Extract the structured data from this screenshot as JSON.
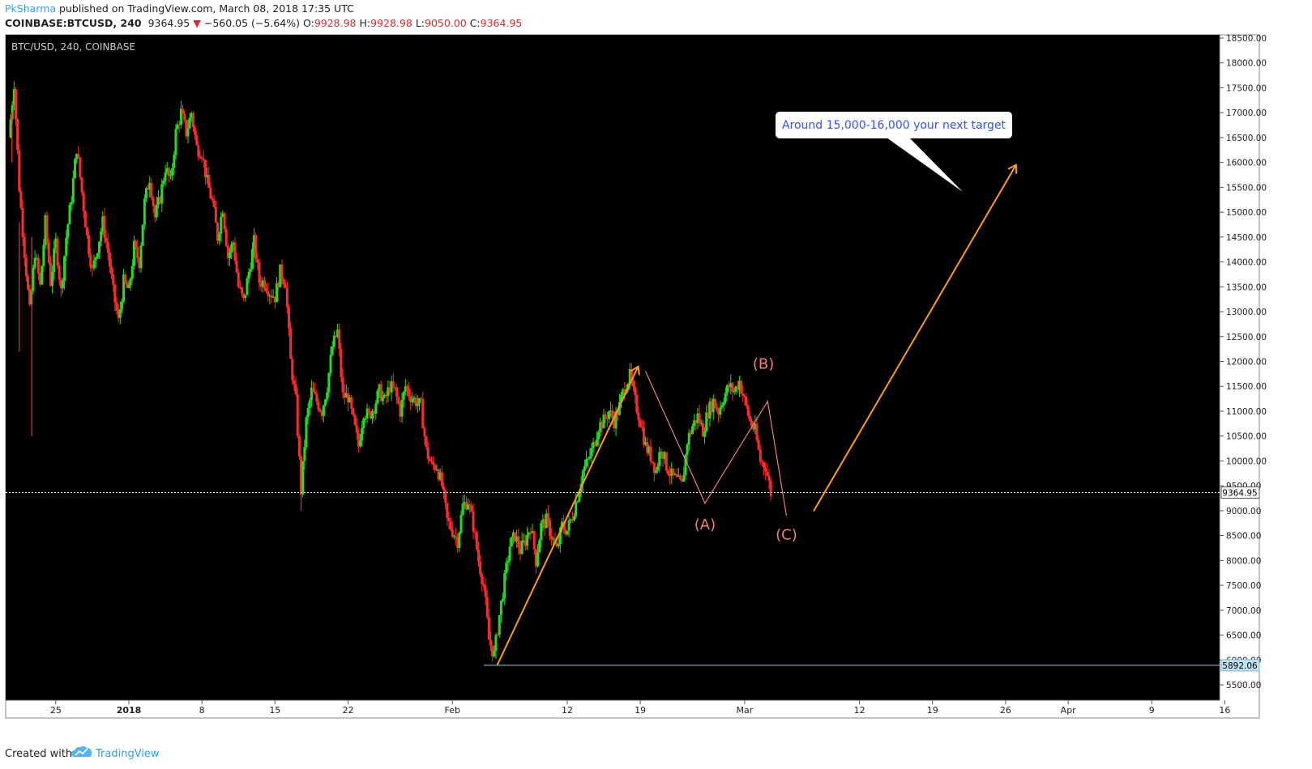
{
  "header": {
    "author": "PkSharma",
    "published": " published on TradingView.com, March 08, 2018 17:35 UTC",
    "symbol": "COINBASE:BTCUSD, 240",
    "price": "9364.95",
    "change": "−560.05 (−5.64%)",
    "o_label": "O:",
    "o_value": "9928.98",
    "h_label": "H:",
    "h_value": "9928.98",
    "l_label": "L:",
    "l_value": "9050.00",
    "c_label": "C:",
    "c_value": "9364.95"
  },
  "footer": {
    "created": "Created with",
    "brand": "TradingView"
  },
  "chart_data": {
    "type": "candlestick",
    "title": "BTC/USD, 240, COINBASE",
    "background": "#000000",
    "up_color": "#22dd22",
    "down_color": "#ff2a2a",
    "annotation_color": "#ff9a1a",
    "wave_color": "#f08070",
    "ylim": [
      5300,
      18600
    ],
    "y_ticks": [
      "18500.00",
      "18000.00",
      "17500.00",
      "17000.00",
      "16500.00",
      "16000.00",
      "15500.00",
      "15000.00",
      "14500.00",
      "14000.00",
      "13500.00",
      "13000.00",
      "12500.00",
      "12000.00",
      "11500.00",
      "11000.00",
      "10500.00",
      "10000.00",
      "9500.00",
      "9000.00",
      "8500.00",
      "8000.00",
      "7500.00",
      "7000.00",
      "6500.00",
      "6000.00",
      "5500.00"
    ],
    "x_ticks": [
      {
        "label": "25",
        "day": -7
      },
      {
        "label": "2018",
        "day": 0
      },
      {
        "label": "8",
        "day": 7
      },
      {
        "label": "15",
        "day": 14
      },
      {
        "label": "22",
        "day": 21
      },
      {
        "label": "Feb",
        "day": 31
      },
      {
        "label": "12",
        "day": 42
      },
      {
        "label": "19",
        "day": 49
      },
      {
        "label": "Mar",
        "day": 59
      },
      {
        "label": "12",
        "day": 70
      },
      {
        "label": "19",
        "day": 77
      },
      {
        "label": "26",
        "day": 84
      },
      {
        "label": "Apr",
        "day": 90
      },
      {
        "label": "9",
        "day": 98
      },
      {
        "label": "16",
        "day": 105
      }
    ],
    "price_path": [
      [
        -11.5,
        16500
      ],
      [
        -11,
        17600
      ],
      [
        -10.5,
        15500
      ],
      [
        -10,
        14200
      ],
      [
        -9.5,
        13000
      ],
      [
        -9,
        14200
      ],
      [
        -8.5,
        13500
      ],
      [
        -8,
        14800
      ],
      [
        -7.5,
        13600
      ],
      [
        -7,
        14400
      ],
      [
        -6.5,
        13400
      ],
      [
        -6,
        14500
      ],
      [
        -5.5,
        15300
      ],
      [
        -5,
        16300
      ],
      [
        -4.5,
        15400
      ],
      [
        -4,
        14500
      ],
      [
        -3.5,
        13800
      ],
      [
        -3,
        14300
      ],
      [
        -2.5,
        14800
      ],
      [
        -2,
        14200
      ],
      [
        -1.5,
        13400
      ],
      [
        -1,
        12800
      ],
      [
        -0.5,
        13600
      ],
      [
        0,
        13400
      ],
      [
        0.5,
        14300
      ],
      [
        1,
        14000
      ],
      [
        1.5,
        15200
      ],
      [
        2,
        15700
      ],
      [
        2.5,
        14900
      ],
      [
        3,
        15300
      ],
      [
        3.5,
        15900
      ],
      [
        4,
        15600
      ],
      [
        4.5,
        16600
      ],
      [
        5,
        17000
      ],
      [
        5.5,
        16600
      ],
      [
        6,
        17000
      ],
      [
        6.5,
        16300
      ],
      [
        7,
        16200
      ],
      [
        7.5,
        15600
      ],
      [
        8,
        15200
      ],
      [
        8.5,
        14500
      ],
      [
        9,
        15100
      ],
      [
        9.5,
        14100
      ],
      [
        10,
        14400
      ],
      [
        10.5,
        13500
      ],
      [
        11,
        13200
      ],
      [
        11.5,
        13800
      ],
      [
        12,
        14400
      ],
      [
        12.5,
        13600
      ],
      [
        13,
        13600
      ],
      [
        13.5,
        13400
      ],
      [
        14,
        13300
      ],
      [
        14.5,
        13800
      ],
      [
        15,
        13600
      ],
      [
        15.5,
        12000
      ],
      [
        16,
        11200
      ],
      [
        16.5,
        9400
      ],
      [
        17,
        10800
      ],
      [
        17.5,
        11400
      ],
      [
        18,
        11200
      ],
      [
        18.5,
        11000
      ],
      [
        19,
        11500
      ],
      [
        19.5,
        12300
      ],
      [
        20,
        12600
      ],
      [
        20.5,
        11300
      ],
      [
        21,
        11300
      ],
      [
        21.5,
        10800
      ],
      [
        22,
        10300
      ],
      [
        22.5,
        11000
      ],
      [
        23,
        10900
      ],
      [
        23.5,
        11100
      ],
      [
        24,
        11400
      ],
      [
        24.5,
        11200
      ],
      [
        25,
        11500
      ],
      [
        25.5,
        11400
      ],
      [
        26,
        11000
      ],
      [
        26.5,
        11500
      ],
      [
        27,
        11300
      ],
      [
        27.5,
        11200
      ],
      [
        28,
        11100
      ],
      [
        28.5,
        10200
      ],
      [
        29,
        9900
      ],
      [
        29.5,
        9900
      ],
      [
        30,
        9500
      ],
      [
        30.5,
        8800
      ],
      [
        31,
        8600
      ],
      [
        31.5,
        8400
      ],
      [
        32,
        9100
      ],
      [
        32.5,
        9200
      ],
      [
        33,
        8700
      ],
      [
        33.5,
        8000
      ],
      [
        34,
        7500
      ],
      [
        34.5,
        6400
      ],
      [
        35,
        6100
      ],
      [
        35.5,
        6900
      ],
      [
        36,
        7600
      ],
      [
        36.5,
        8300
      ],
      [
        37,
        8500
      ],
      [
        37.5,
        8200
      ],
      [
        38,
        8400
      ],
      [
        38.5,
        8700
      ],
      [
        39,
        8000
      ],
      [
        39.5,
        8700
      ],
      [
        40,
        8800
      ],
      [
        40.5,
        8500
      ],
      [
        41,
        8200
      ],
      [
        41.5,
        8700
      ],
      [
        42,
        8600
      ],
      [
        42.5,
        8900
      ],
      [
        43,
        9300
      ],
      [
        43.5,
        9800
      ],
      [
        44,
        10000
      ],
      [
        44.5,
        10300
      ],
      [
        45,
        10700
      ],
      [
        45.5,
        10800
      ],
      [
        46,
        11000
      ],
      [
        46.5,
        10800
      ],
      [
        47,
        11100
      ],
      [
        47.5,
        11500
      ],
      [
        48,
        11700
      ],
      [
        48.5,
        11200
      ],
      [
        49,
        10800
      ],
      [
        49.5,
        10300
      ],
      [
        50,
        10100
      ],
      [
        50.5,
        9800
      ],
      [
        51,
        10300
      ],
      [
        51.5,
        9900
      ],
      [
        52,
        9700
      ],
      [
        52.5,
        9600
      ],
      [
        53,
        9500
      ],
      [
        53.5,
        10400
      ],
      [
        54,
        10700
      ],
      [
        54.5,
        10900
      ],
      [
        55,
        10600
      ],
      [
        55.5,
        11000
      ],
      [
        56,
        11200
      ],
      [
        56.5,
        11000
      ],
      [
        57,
        11300
      ],
      [
        57.5,
        11500
      ],
      [
        58,
        11400
      ],
      [
        58.5,
        11600
      ],
      [
        59,
        11200
      ],
      [
        59.5,
        10800
      ],
      [
        60,
        10600
      ],
      [
        60.5,
        10000
      ],
      [
        61,
        9900
      ],
      [
        61.5,
        9364
      ]
    ],
    "spikes": [
      [
        -10.5,
        14800,
        12200
      ],
      [
        -9.3,
        14500,
        10500
      ],
      [
        16.5,
        10000,
        9000
      ],
      [
        -11.2,
        17000,
        16000
      ]
    ],
    "last_price": "9364.95",
    "last_price_value": 9364.95,
    "support_label": "5892.06",
    "support_value": 5892.06,
    "annotations": {
      "callout": "Around 15,000-16,000 your next target",
      "wave_A": "(A)",
      "wave_B": "(B)",
      "wave_C": "(C)"
    }
  }
}
